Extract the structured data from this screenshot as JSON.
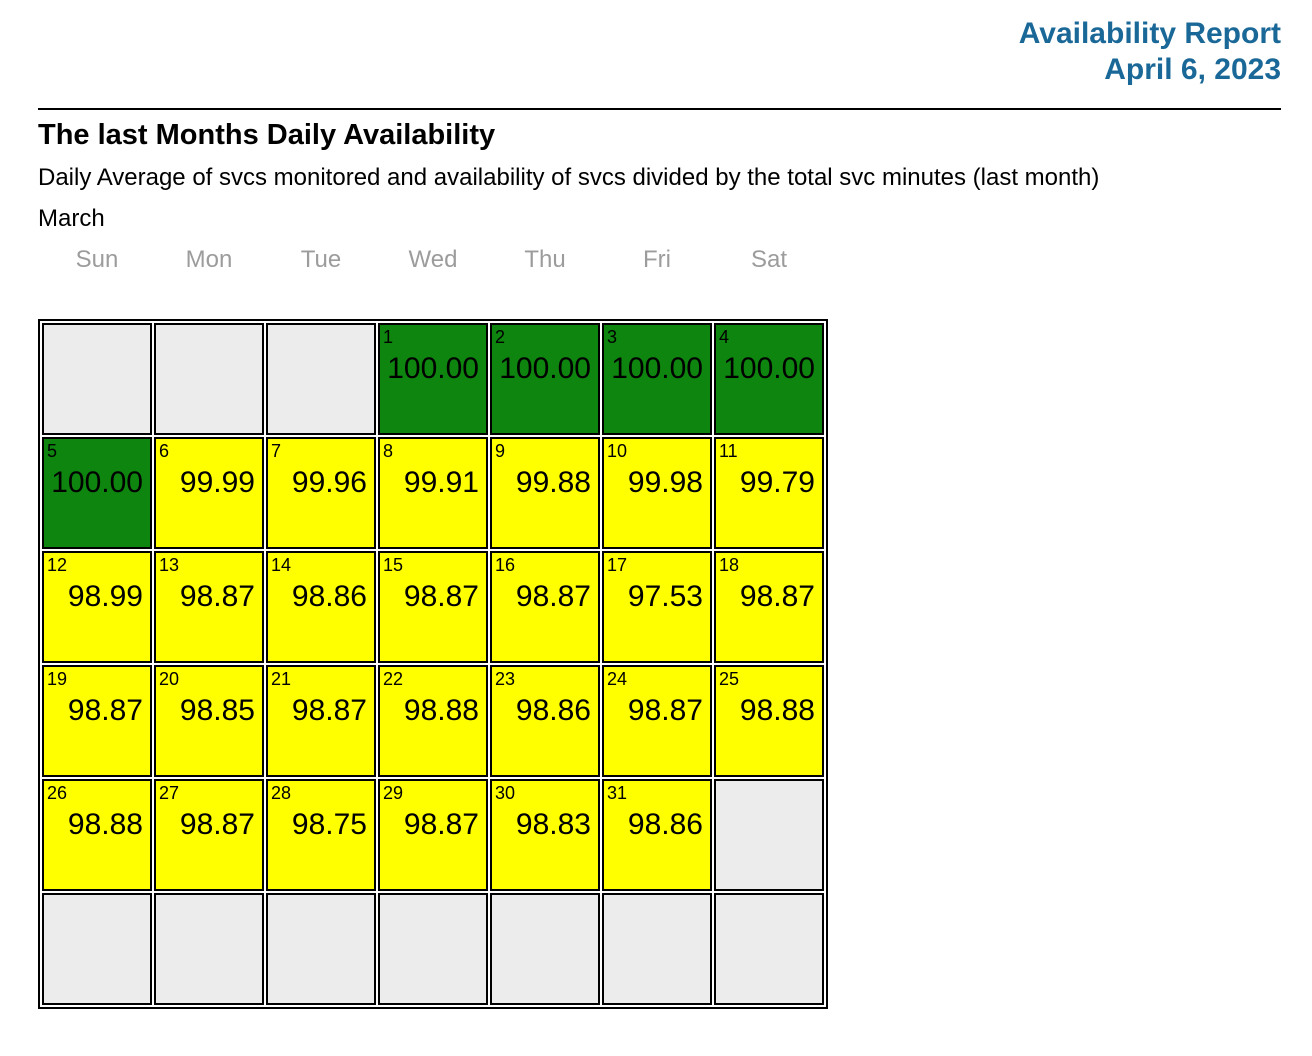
{
  "report": {
    "title": "Availability Report",
    "date": "April 6, 2023",
    "header_color": "#1a6898"
  },
  "section": {
    "heading": "The last Months Daily Availability",
    "subtitle": "Daily Average of svcs monitored and availability of svcs divided by the total svc minutes (last month)",
    "month_label": "March"
  },
  "calendar": {
    "weekday_headers": [
      "Sun",
      "Mon",
      "Tue",
      "Wed",
      "Thu",
      "Fri",
      "Sat"
    ],
    "colors": {
      "green": "#0e850e",
      "yellow": "#ffff00",
      "empty": "#ececec"
    },
    "weeks": [
      [
        null,
        null,
        null,
        {
          "day": "1",
          "value": "100.00",
          "status": "green"
        },
        {
          "day": "2",
          "value": "100.00",
          "status": "green"
        },
        {
          "day": "3",
          "value": "100.00",
          "status": "green"
        },
        {
          "day": "4",
          "value": "100.00",
          "status": "green"
        }
      ],
      [
        {
          "day": "5",
          "value": "100.00",
          "status": "green"
        },
        {
          "day": "6",
          "value": "99.99",
          "status": "yellow"
        },
        {
          "day": "7",
          "value": "99.96",
          "status": "yellow"
        },
        {
          "day": "8",
          "value": "99.91",
          "status": "yellow"
        },
        {
          "day": "9",
          "value": "99.88",
          "status": "yellow"
        },
        {
          "day": "10",
          "value": "99.98",
          "status": "yellow"
        },
        {
          "day": "11",
          "value": "99.79",
          "status": "yellow"
        }
      ],
      [
        {
          "day": "12",
          "value": "98.99",
          "status": "yellow"
        },
        {
          "day": "13",
          "value": "98.87",
          "status": "yellow"
        },
        {
          "day": "14",
          "value": "98.86",
          "status": "yellow"
        },
        {
          "day": "15",
          "value": "98.87",
          "status": "yellow"
        },
        {
          "day": "16",
          "value": "98.87",
          "status": "yellow"
        },
        {
          "day": "17",
          "value": "97.53",
          "status": "yellow"
        },
        {
          "day": "18",
          "value": "98.87",
          "status": "yellow"
        }
      ],
      [
        {
          "day": "19",
          "value": "98.87",
          "status": "yellow"
        },
        {
          "day": "20",
          "value": "98.85",
          "status": "yellow"
        },
        {
          "day": "21",
          "value": "98.87",
          "status": "yellow"
        },
        {
          "day": "22",
          "value": "98.88",
          "status": "yellow"
        },
        {
          "day": "23",
          "value": "98.86",
          "status": "yellow"
        },
        {
          "day": "24",
          "value": "98.87",
          "status": "yellow"
        },
        {
          "day": "25",
          "value": "98.88",
          "status": "yellow"
        }
      ],
      [
        {
          "day": "26",
          "value": "98.88",
          "status": "yellow"
        },
        {
          "day": "27",
          "value": "98.87",
          "status": "yellow"
        },
        {
          "day": "28",
          "value": "98.75",
          "status": "yellow"
        },
        {
          "day": "29",
          "value": "98.87",
          "status": "yellow"
        },
        {
          "day": "30",
          "value": "98.83",
          "status": "yellow"
        },
        {
          "day": "31",
          "value": "98.86",
          "status": "yellow"
        },
        null
      ],
      [
        null,
        null,
        null,
        null,
        null,
        null,
        null
      ]
    ]
  }
}
